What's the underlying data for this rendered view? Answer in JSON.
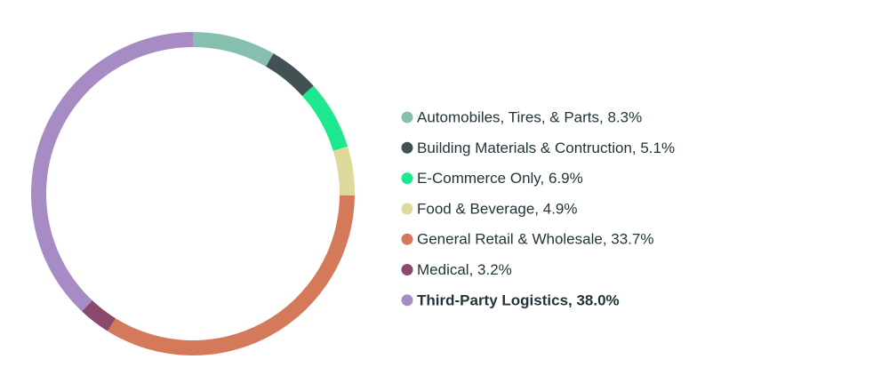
{
  "chart_data": {
    "type": "donut",
    "categories": [
      "Automobiles, Tires, & Parts, 8.3%",
      "Building Materials & Contruction, 5.1%",
      "E-Commerce Only, 6.9%",
      "Food & Beverage, 4.9%",
      "General Retail & Wholesale, 33.7%",
      "Medical, 3.2%",
      "Third-Party Logistics, 38.0%"
    ],
    "values": [
      8.3,
      5.1,
      6.9,
      4.9,
      33.7,
      3.2,
      38.0
    ],
    "colors": [
      "#86bfb0",
      "#425154",
      "#1de88f",
      "#dcd99a",
      "#d4795a",
      "#8a4a6e",
      "#a68bc4"
    ],
    "bold_index": 6,
    "legend": "right"
  }
}
